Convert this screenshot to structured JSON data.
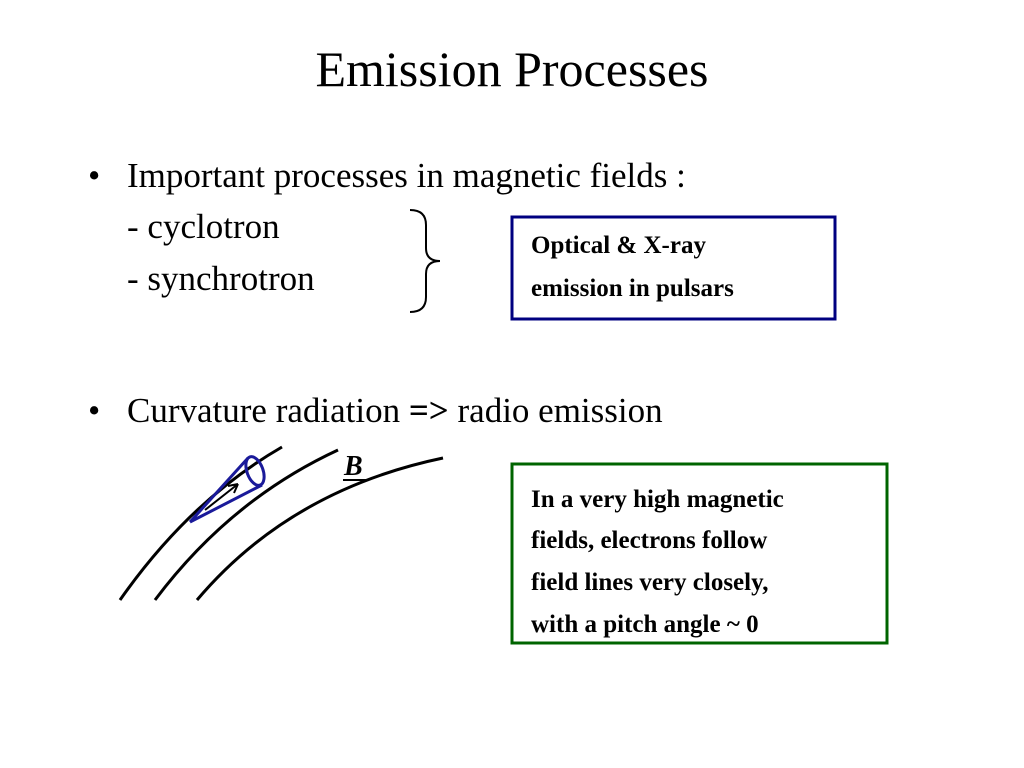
{
  "title": "Emission Processes",
  "bullets": [
    {
      "text": "Important processes in magnetic fields :",
      "items": [
        "- cyclotron",
        "- synchrotron"
      ],
      "box": {
        "lines": [
          "Optical & X-ray",
          "emission in pulsars"
        ]
      }
    },
    {
      "parts": [
        "Curvature radiation ",
        "=>",
        " radio emission"
      ],
      "figure_label": "B",
      "box": {
        "lines": [
          "In a very high magnetic",
          "fields, electrons follow",
          "field lines very closely,",
          "with a pitch angle ~ 0"
        ]
      }
    }
  ]
}
